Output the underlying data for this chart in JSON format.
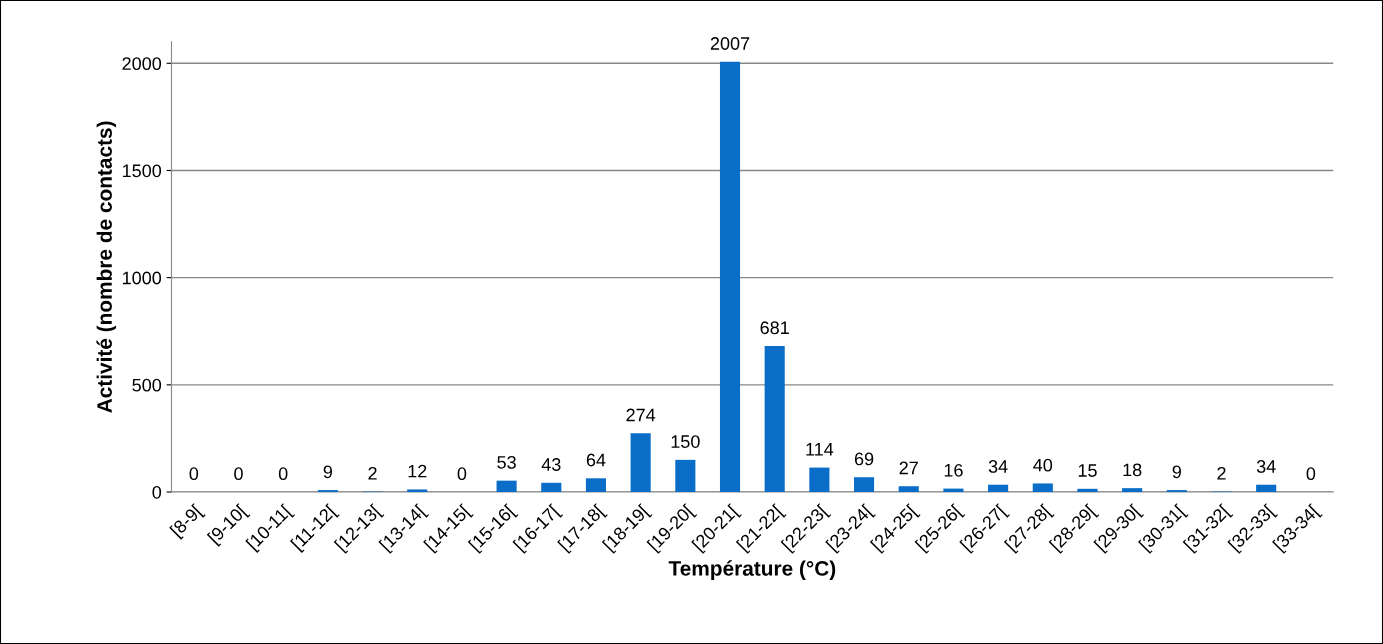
{
  "chart_data": {
    "type": "bar",
    "xlabel": "Température (°C)",
    "ylabel": "Activité (nombre de contacts)",
    "categories": [
      "[8-9[",
      "[9-10[",
      "[10-11[",
      "[11-12[",
      "[12-13[",
      "[13-14[",
      "[14-15[",
      "[15-16[",
      "[16-17[",
      "[17-18[",
      "[18-19[",
      "[19-20[",
      "[20-21[",
      "[21-22[",
      "[22-23[",
      "[23-24[",
      "[24-25[",
      "[25-26[",
      "[26-27[",
      "[27-28[",
      "[28-29[",
      "[29-30[",
      "[30-31[",
      "[31-32[",
      "[32-33[",
      "[33-34["
    ],
    "values": [
      0,
      0,
      0,
      9,
      2,
      12,
      0,
      53,
      43,
      64,
      274,
      150,
      2007,
      681,
      114,
      69,
      27,
      16,
      34,
      40,
      15,
      18,
      9,
      2,
      34,
      0
    ],
    "color": "#0a6ec8",
    "ylim": [
      0,
      2100
    ],
    "yticks": [
      0,
      500,
      1000,
      1500,
      2000
    ],
    "grid": "y",
    "data_labels": true
  }
}
